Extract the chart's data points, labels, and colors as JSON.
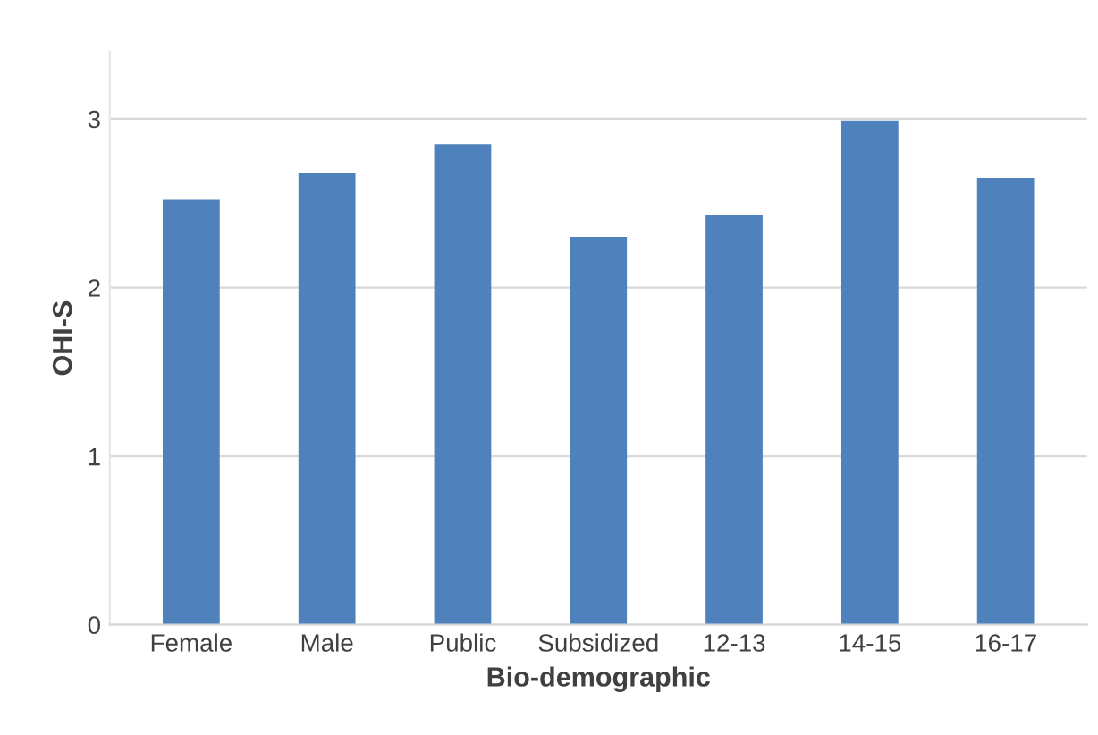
{
  "chart_data": {
    "type": "bar",
    "xlabel": "Bio-demographic",
    "ylabel": "OHI-S",
    "categories": [
      "Female",
      "Male",
      "Public",
      "Subsidized",
      "12-13",
      "14-15",
      "16-17"
    ],
    "values": [
      2.52,
      2.68,
      2.85,
      2.3,
      2.43,
      2.99,
      2.65
    ],
    "color": "#4f81bd",
    "ylim": [
      0,
      3.4
    ],
    "yticks": [
      0,
      1,
      2,
      3
    ],
    "grid": "y"
  }
}
